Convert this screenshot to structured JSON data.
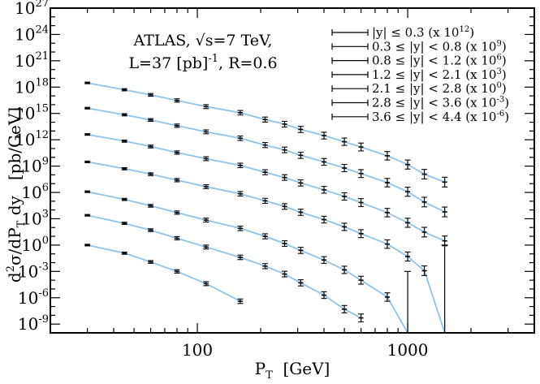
{
  "chart_data": {
    "type": "line",
    "xlabel": {
      "main": "P",
      "sub": "T",
      "tail": "  [GeV]"
    },
    "ylabel": {
      "pre": "d",
      "sup": "2",
      "mid": "σ/dP",
      "sub": "T",
      "tail": " dy   [pb/GeV]"
    },
    "x_scale": "log",
    "y_scale": "log",
    "xlim": [
      20,
      4000
    ],
    "ylim": [
      1e-10,
      1e+27
    ],
    "x_ticks": [
      {
        "value": 100,
        "label": "100"
      },
      {
        "value": 1000,
        "label": "1000"
      }
    ],
    "y_ticks": [
      {
        "value": 1e-09,
        "base": "10",
        "exp": "-9"
      },
      {
        "value": 1e-06,
        "base": "10",
        "exp": "-6"
      },
      {
        "value": 0.001,
        "base": "10",
        "exp": "-3"
      },
      {
        "value": 1,
        "base": "10",
        "exp": "0"
      },
      {
        "value": 1000.0,
        "base": "10",
        "exp": "3"
      },
      {
        "value": 1000000.0,
        "base": "10",
        "exp": "6"
      },
      {
        "value": 1000000000.0,
        "base": "10",
        "exp": "9"
      },
      {
        "value": 1000000000000.0,
        "base": "10",
        "exp": "12"
      },
      {
        "value": 1000000000000000.0,
        "base": "10",
        "exp": "15"
      },
      {
        "value": 1e+18,
        "base": "10",
        "exp": "18"
      },
      {
        "value": 1e+21,
        "base": "10",
        "exp": "21"
      },
      {
        "value": 1e+24,
        "base": "10",
        "exp": "24"
      },
      {
        "value": 1e+27,
        "base": "10",
        "exp": "27"
      }
    ],
    "annotation": {
      "line1": "ATLAS, √s=7 TeV,",
      "line2_pre": "L=37 [pb]",
      "line2_sup": "-1",
      "line2_post": ", R=0.6"
    },
    "legend_position": "top-right",
    "series": [
      {
        "name": "|y| ≤ 0.3 (x 10",
        "scale_exp": "12",
        "name_tail": ")",
        "x": [
          30,
          45,
          60,
          80,
          110,
          160,
          210,
          260,
          310,
          400,
          500,
          600,
          800,
          1000,
          1200,
          1500
        ],
        "y": [
          3e+18,
          5e+17,
          1.3e+17,
          3e+16,
          6000000000000000.0,
          1200000000000000.0,
          200000000000000.0,
          60000000000000.0,
          15000000000000.0,
          3000000000000.0,
          600000000000.0,
          150000000000.0,
          15000000000.0,
          1500000000.0,
          120000000.0,
          15000000.0
        ]
      },
      {
        "name": "0.3 ≤ |y| < 0.8 (x 10",
        "scale_exp": "9",
        "name_tail": ")",
        "x": [
          30,
          45,
          60,
          80,
          110,
          160,
          210,
          260,
          310,
          400,
          500,
          600,
          800,
          1000,
          1200,
          1500
        ],
        "y": [
          4000000000000000.0,
          700000000000000.0,
          180000000000000.0,
          40000000000000.0,
          8000000000000.0,
          1500000000000.0,
          250000000000.0,
          70000000000.0,
          17000000000.0,
          3000000000.0,
          600000000.0,
          140000000.0,
          13000000.0,
          1200000.0,
          80000.0,
          6000.0
        ]
      },
      {
        "name": "0.8 ≤ |y| < 1.2 (x 10",
        "scale_exp": "6",
        "name_tail": ")",
        "x": [
          30,
          45,
          60,
          80,
          110,
          160,
          210,
          260,
          310,
          400,
          500,
          600,
          800,
          1000,
          1200,
          1500
        ],
        "y": [
          4000000000000.0,
          700000000000.0,
          170000000000.0,
          35000000000.0,
          7000000000.0,
          1200000000.0,
          200000000.0,
          50000000.0,
          12000000.0,
          2000000.0,
          350000.0,
          70000.0,
          5000.0,
          350,
          30,
          3
        ]
      },
      {
        "name": "1.2 ≤ |y| < 2.1 (x 10",
        "scale_exp": "3",
        "name_tail": ")",
        "x": [
          30,
          45,
          60,
          80,
          110,
          160,
          210,
          260,
          310,
          400,
          500,
          600,
          800,
          1000,
          1200,
          1500
        ],
        "y": [
          3000000000.0,
          500000000.0,
          120000000.0,
          25000000.0,
          4500000.0,
          700000.0,
          110000.0,
          25000.0,
          5500.0,
          800,
          120,
          20,
          1.3,
          0.05,
          0.0012,
          2e-11
        ]
      },
      {
        "name": "2.1 ≤ |y| < 2.8 (x 10",
        "scale_exp": "0",
        "name_tail": ")",
        "x": [
          30,
          45,
          60,
          80,
          110,
          160,
          210,
          260,
          310,
          400,
          500,
          600,
          800,
          1000
        ],
        "y": [
          1200000.0,
          160000.0,
          30000.0,
          5000.0,
          700,
          80,
          10,
          1.5,
          0.25,
          0.02,
          0.0015,
          0.0001,
          1.2e-06,
          8e-11
        ]
      },
      {
        "name": "2.8 ≤ |y| < 3.6 (x 10",
        "scale_exp": "-3",
        "name_tail": ")",
        "x": [
          30,
          45,
          60,
          80,
          110,
          160,
          210,
          260,
          310,
          400,
          500,
          600
        ],
        "y": [
          2500.0,
          300,
          50,
          6,
          0.6,
          0.04,
          0.004,
          0.0005,
          5e-05,
          2e-06,
          5e-08,
          5e-09
        ]
      },
      {
        "name": "3.6 ≤ |y| < 4.4 (x 10",
        "scale_exp": "-6",
        "name_tail": ")",
        "x": [
          30,
          45,
          60,
          80,
          110,
          160
        ],
        "y": [
          1,
          0.12,
          0.012,
          0.001,
          4e-05,
          4e-07
        ]
      }
    ]
  }
}
